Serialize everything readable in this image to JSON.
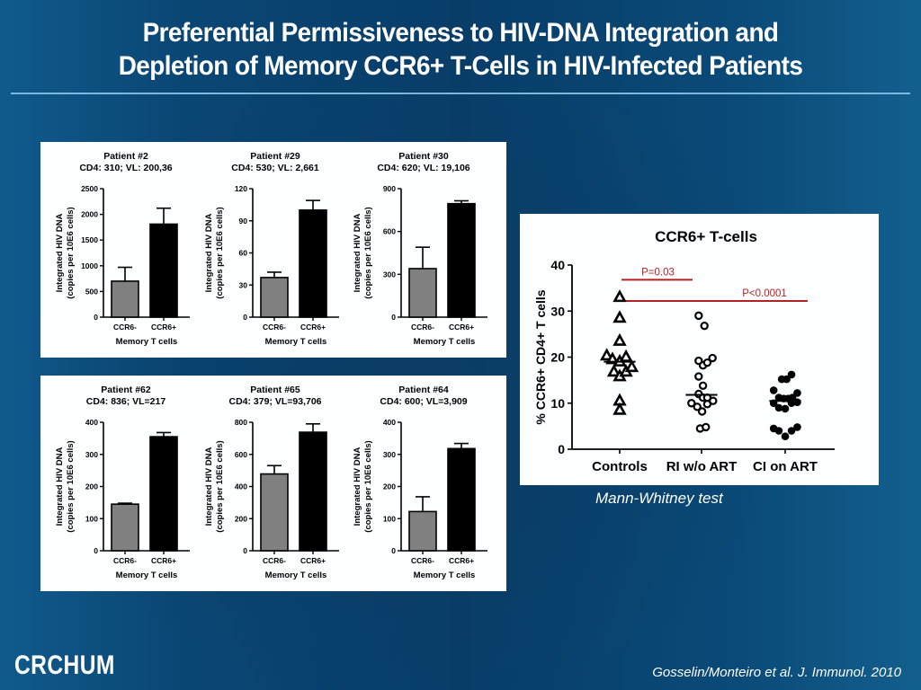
{
  "slide": {
    "title_line1": "Preferential Permissiveness to HIV-DNA Integration and",
    "title_line2": "Depletion of Memory CCR6+ T-Cells in HIV-Infected Patients",
    "stat_note": "Mann-Whitney test",
    "logo": "CRCHUM",
    "citation": "Gosselin/Monteiro et al. J. Immunol. 2010",
    "colors": {
      "background": "#0a4674",
      "title_rule": "#7fb6dc",
      "bar_ccr6_neg": "#808080",
      "bar_ccr6_pos": "#000000",
      "pvalue_line": "#b22222"
    }
  },
  "chart_data": [
    {
      "type": "bar",
      "panel": "top",
      "position": 0,
      "title": "Patient #2",
      "subtitle": "CD4: 310; VL: 200,36",
      "categories": [
        "CCR6-",
        "CCR6+"
      ],
      "values": [
        700,
        1810
      ],
      "errors_upper": [
        970,
        2120
      ],
      "xlabel": "Memory T cells",
      "ylabel": "Integrated HIV DNA (copies per 10E6 cells)",
      "ylim": [
        0,
        2500
      ],
      "yticks": [
        0,
        500,
        1000,
        1500,
        2000,
        2500
      ],
      "grid": false
    },
    {
      "type": "bar",
      "panel": "top",
      "position": 1,
      "title": "Patient #29",
      "subtitle": "CD4: 530; VL: 2,661",
      "categories": [
        "CCR6-",
        "CCR6+"
      ],
      "values": [
        37,
        100
      ],
      "errors_upper": [
        42,
        109
      ],
      "xlabel": "Memory T cells",
      "ylabel": "Integrated HIV DNA (copies per 10E6 cells)",
      "ylim": [
        0,
        120
      ],
      "yticks": [
        0,
        30,
        60,
        90,
        120
      ],
      "grid": false
    },
    {
      "type": "bar",
      "panel": "top",
      "position": 2,
      "title": "Patient #30",
      "subtitle": "CD4: 620; VL: 19,106",
      "categories": [
        "CCR6-",
        "CCR6+"
      ],
      "values": [
        340,
        795
      ],
      "errors_upper": [
        490,
        815
      ],
      "xlabel": "Memory T cells",
      "ylabel": "Integrated HIV DNA (copies per 10E6 cells)",
      "ylim": [
        0,
        900
      ],
      "yticks": [
        0,
        300,
        600,
        900
      ],
      "grid": false
    },
    {
      "type": "bar",
      "panel": "bottom",
      "position": 0,
      "title": "Patient #62",
      "subtitle": "CD4: 836; VL=217",
      "categories": [
        "CCR6-",
        "CCR6+"
      ],
      "values": [
        145,
        355
      ],
      "errors_upper": [
        148,
        368
      ],
      "xlabel": "Memory T cells",
      "ylabel": "Integrated HIV DNA (copies per 10E6 cells)",
      "ylim": [
        0,
        400
      ],
      "yticks": [
        0,
        100,
        200,
        300,
        400
      ],
      "grid": false
    },
    {
      "type": "bar",
      "panel": "bottom",
      "position": 1,
      "title": "Patient #65",
      "subtitle": "CD4: 379; VL=93,706",
      "categories": [
        "CCR6-",
        "CCR6+"
      ],
      "values": [
        478,
        738
      ],
      "errors_upper": [
        530,
        790
      ],
      "xlabel": "Memory T cells",
      "ylabel": "Integrated HIV DNA (copies per 10E6 cells)",
      "ylim": [
        0,
        800
      ],
      "yticks": [
        0,
        200,
        400,
        600,
        800
      ],
      "grid": false
    },
    {
      "type": "bar",
      "panel": "bottom",
      "position": 2,
      "title": "Patient #64",
      "subtitle": "CD4: 600; VL=3,909",
      "categories": [
        "CCR6-",
        "CCR6+"
      ],
      "values": [
        122,
        318
      ],
      "errors_upper": [
        168,
        334
      ],
      "xlabel": "Memory T cells",
      "ylabel": "Integrated HIV DNA (copies per 10E6 cells)",
      "ylim": [
        0,
        400
      ],
      "yticks": [
        0,
        100,
        200,
        300,
        400
      ],
      "grid": false
    },
    {
      "type": "scatter",
      "panel": "scatter",
      "title": "CCR6+ T-cells",
      "ylabel": "% CCR6+ CD4+ T cells",
      "ylim": [
        0,
        40
      ],
      "yticks": [
        0,
        10,
        20,
        30,
        40
      ],
      "grid": false,
      "categories": [
        "Controls",
        "RI w/o ART",
        "CI on ART"
      ],
      "series": [
        {
          "name": "Controls",
          "marker": "triangle-open",
          "points": [
            [
              0,
              33
            ],
            [
              0,
              28.5
            ],
            [
              0,
              23.5
            ],
            [
              -0.45,
              20.3
            ],
            [
              -0.25,
              19.5
            ],
            [
              0,
              19
            ],
            [
              0.22,
              20
            ],
            [
              -0.2,
              16.8
            ],
            [
              0,
              15.8
            ],
            [
              0.22,
              16.8
            ],
            [
              0.42,
              17.8
            ],
            [
              0,
              10.5
            ],
            [
              0,
              8.5
            ]
          ],
          "median": 19
        },
        {
          "name": "RI w/o ART",
          "marker": "circle-open",
          "points": [
            [
              -0.1,
              29
            ],
            [
              0.1,
              26.8
            ],
            [
              -0.1,
              19.2
            ],
            [
              0.05,
              18.2
            ],
            [
              0.2,
              18.8
            ],
            [
              0.38,
              19.8
            ],
            [
              -0.1,
              15.8
            ],
            [
              0.05,
              13.8
            ],
            [
              -0.1,
              12
            ],
            [
              0.05,
              11.2
            ],
            [
              0.2,
              11.2
            ],
            [
              -0.35,
              10
            ],
            [
              -0.15,
              9.2
            ],
            [
              0.02,
              8.2
            ],
            [
              0.2,
              9.8
            ],
            [
              0.4,
              10.5
            ],
            [
              -0.05,
              4.5
            ],
            [
              0.15,
              4.8
            ]
          ],
          "median": 11.8
        },
        {
          "name": "CI on ART",
          "marker": "circle-filled",
          "points": [
            [
              -0.12,
              15.2
            ],
            [
              0.05,
              15.2
            ],
            [
              0.22,
              16.2
            ],
            [
              -0.4,
              12.8
            ],
            [
              -0.22,
              11.2
            ],
            [
              -0.05,
              11
            ],
            [
              0.1,
              11
            ],
            [
              0.25,
              11.2
            ],
            [
              0.42,
              12.2
            ],
            [
              -0.4,
              10
            ],
            [
              -0.22,
              9
            ],
            [
              0,
              8.8
            ],
            [
              0.22,
              10
            ],
            [
              0.42,
              10.2
            ],
            [
              -0.4,
              4.5
            ],
            [
              -0.22,
              4
            ],
            [
              0,
              2.8
            ],
            [
              0.22,
              4
            ],
            [
              0.42,
              4.8
            ]
          ],
          "median": 10.5
        }
      ],
      "annotations": [
        {
          "label": "P=0.03",
          "from": 0,
          "to": 1,
          "y": 36.8
        },
        {
          "label": "P<0.0001",
          "from": 0,
          "to": 2,
          "y": 32.2
        }
      ]
    }
  ]
}
